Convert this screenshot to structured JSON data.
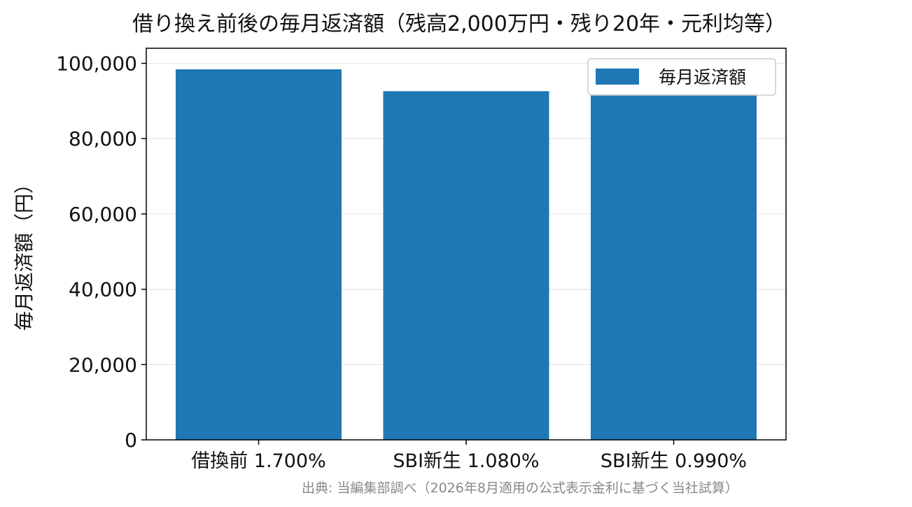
{
  "chart_data": {
    "type": "bar",
    "title": "借り換え前後の毎月返済額（残高2,000万円・残り20年・元利均等）",
    "xlabel": "",
    "ylabel": "毎月返済額（円）",
    "categories": [
      "借換前 1.700%",
      "SBI新生 1.080%",
      "SBI新生 0.990%"
    ],
    "series": [
      {
        "name": "毎月返済額",
        "values": [
          98400,
          92600,
          91800
        ]
      }
    ],
    "ylim": [
      0,
      104000
    ],
    "yticks": [
      0,
      20000,
      40000,
      60000,
      80000,
      100000
    ],
    "ytick_labels": [
      "0",
      "20,000",
      "40,000",
      "60,000",
      "80,000",
      "100,000"
    ],
    "grid": "y",
    "legend_position": "top-right",
    "colors": {
      "bar": "#1f77b4",
      "grid": "#e6e6e6",
      "axis": "#000000"
    },
    "source_note": "出典: 当編集部調べ（2026年8月適用の公式表示金利に基づく当社試算）"
  }
}
